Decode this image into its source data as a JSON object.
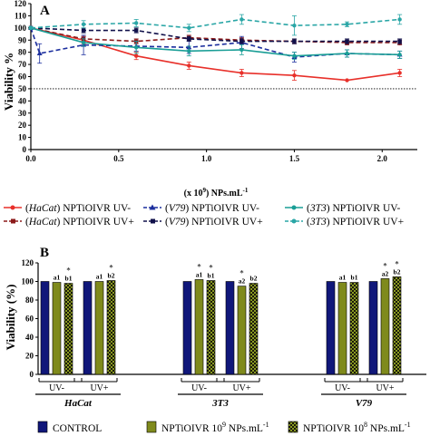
{
  "chart_data": [
    {
      "panel": "A",
      "type": "line",
      "ylabel": "Viability %",
      "xlabel_prefix": "(x 10",
      "xlabel_sup": "9",
      "xlabel_mid": ") NPs.mL",
      "xlabel_sup2": "-1",
      "xlim": [
        0,
        2.2
      ],
      "ylim": [
        0,
        120
      ],
      "x_ticks": [
        "0.0",
        "0.5",
        "1.0",
        "1.5",
        "2.0"
      ],
      "y_ticks": [
        "0",
        "10",
        "20",
        "30",
        "40",
        "50",
        "60",
        "70",
        "80",
        "90",
        "100",
        "110",
        "120"
      ],
      "reference_line": 50,
      "series": [
        {
          "name": "(HaCat) NPTiOIVR UV-",
          "cell": "HaCat",
          "suffix": " NPTiOIVR UV-",
          "color": "#e8302a",
          "dashed": false,
          "marker": "circle",
          "x": [
            0,
            0.3,
            0.6,
            0.9,
            1.2,
            1.5,
            1.8,
            2.1
          ],
          "y": [
            100,
            90,
            77,
            69,
            63,
            61,
            57,
            63
          ],
          "err": [
            1,
            3,
            3,
            3,
            3,
            4,
            0,
            3
          ]
        },
        {
          "name": "(HaCat) NPTiOIVR UV+",
          "cell": "HaCat",
          "suffix": " NPTiOIVR UV+",
          "color": "#8b1a1a",
          "dashed": true,
          "marker": "square",
          "x": [
            0,
            0.3,
            0.6,
            0.9,
            1.2,
            1.5,
            1.8,
            2.1
          ],
          "y": [
            100,
            91,
            89,
            92,
            90,
            89,
            88,
            88
          ],
          "err": [
            1,
            2,
            2,
            2,
            2,
            2,
            2,
            2
          ]
        },
        {
          "name": "(V79) NPTiOIVR UV-",
          "cell": "V79",
          "suffix": " NPTiOIVR UV-",
          "color": "#1c2f9e",
          "dashed": true,
          "marker": "triangle",
          "x": [
            0,
            0.05,
            0.3,
            0.6,
            0.9,
            1.2,
            1.5,
            1.8,
            2.1
          ],
          "y": [
            100,
            79,
            86,
            85,
            84,
            88,
            76,
            79,
            78
          ],
          "err": [
            1,
            8,
            8,
            4,
            5,
            5,
            4,
            3,
            3
          ]
        },
        {
          "name": "(V79) NPTiOIVR UV+",
          "cell": "V79",
          "suffix": " NPTiOIVR UV+",
          "color": "#10104a",
          "dashed": true,
          "marker": "square",
          "x": [
            0,
            0.3,
            0.6,
            0.9,
            1.2,
            1.5,
            1.8,
            2.1
          ],
          "y": [
            100,
            98,
            98,
            91,
            89,
            89,
            89,
            89
          ],
          "err": [
            1,
            2,
            2,
            2,
            2,
            2,
            2,
            2
          ]
        },
        {
          "name": "(3T3) NPTiOIVR UV-",
          "cell": "3T3",
          "suffix": " NPTiOIVR UV-",
          "color": "#1a9e96",
          "dashed": false,
          "marker": "circle",
          "x": [
            0,
            0.3,
            0.6,
            0.9,
            1.2,
            1.5,
            1.8,
            2.1
          ],
          "y": [
            100,
            88,
            84,
            81,
            82,
            77,
            79,
            78
          ],
          "err": [
            1,
            3,
            5,
            4,
            4,
            3,
            3,
            3
          ]
        },
        {
          "name": "(3T3) NPTiOIVR UV+",
          "cell": "3T3",
          "suffix": " NPTiOIVR UV+",
          "color": "#2aa6a6",
          "dashed": true,
          "marker": "circle",
          "x": [
            0,
            0.3,
            0.6,
            0.9,
            1.2,
            1.5,
            1.8,
            2.1
          ],
          "y": [
            100,
            103,
            104,
            100,
            107,
            102,
            103,
            107
          ],
          "err": [
            1,
            3,
            3,
            3,
            4,
            8,
            2,
            4
          ]
        }
      ]
    },
    {
      "panel": "B",
      "type": "bar",
      "ylabel": "Viability (%)",
      "ylim": [
        0,
        120
      ],
      "y_ticks": [
        "0",
        "20",
        "40",
        "60",
        "80",
        "100",
        "120"
      ],
      "groups": [
        {
          "cell": "HaCat",
          "conditions": [
            {
              "label": "UV-",
              "values": [
                100,
                99,
                98
              ],
              "letters": [
                "",
                "a1",
                "b1"
              ],
              "stars": [
                "",
                "",
                "*"
              ]
            },
            {
              "label": "UV+",
              "values": [
                100,
                100,
                101
              ],
              "letters": [
                "",
                "a1",
                "b2"
              ],
              "stars": [
                "",
                "",
                "*"
              ]
            }
          ]
        },
        {
          "cell": "3T3",
          "conditions": [
            {
              "label": "UV-",
              "values": [
                100,
                102,
                101
              ],
              "letters": [
                "",
                "a1",
                "b1"
              ],
              "stars": [
                "",
                "*",
                "*"
              ]
            },
            {
              "label": "UV+",
              "values": [
                100,
                95,
                98
              ],
              "letters": [
                "",
                "a2",
                "b2"
              ],
              "stars": [
                "",
                "*",
                ""
              ]
            }
          ]
        },
        {
          "cell": "V79",
          "conditions": [
            {
              "label": "UV-",
              "values": [
                100,
                99,
                99
              ],
              "letters": [
                "",
                "a1",
                "b1"
              ],
              "stars": [
                "",
                "",
                ""
              ]
            },
            {
              "label": "UV+",
              "values": [
                100,
                103,
                105
              ],
              "letters": [
                "",
                "a2",
                "b2"
              ],
              "stars": [
                "",
                "*",
                "*"
              ]
            }
          ]
        }
      ],
      "legend": [
        {
          "prefix": "CONTROL",
          "sup": "",
          "suffix": "",
          "color": "#10177a",
          "pattern": "solid"
        },
        {
          "prefix": "NPTiOIVR 10",
          "sup": "9",
          "suffix": " NPs.mL",
          "sup2": "-1",
          "color": "#7f8a1c",
          "pattern": "solid"
        },
        {
          "prefix": "NPTiOIVR 10",
          "sup": "8",
          "suffix": " NPs.mL",
          "sup2": "-1",
          "color": "#2a2a10",
          "pattern": "checker"
        }
      ]
    }
  ]
}
